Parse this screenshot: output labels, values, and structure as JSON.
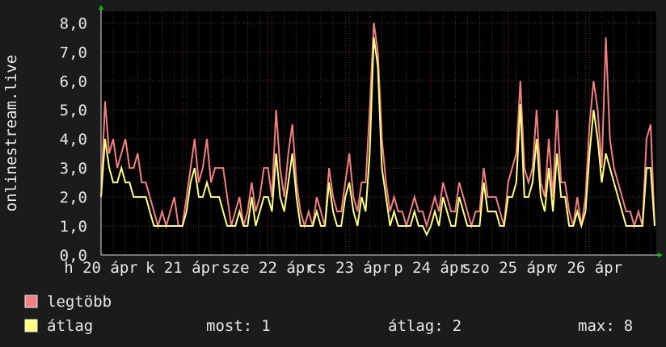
{
  "chart_data": {
    "type": "line",
    "y_label": "onlinestream.live",
    "categories": [
      "h 20 ápr",
      null,
      null,
      null,
      null,
      null,
      null,
      null,
      null,
      null,
      null,
      null,
      null,
      null,
      null,
      null,
      null,
      null,
      null,
      null,
      "k 21 ápr",
      null,
      null,
      null,
      null,
      null,
      null,
      null,
      null,
      null,
      null,
      null,
      null,
      null,
      null,
      null,
      null,
      null,
      null,
      null,
      null,
      "sze 22 ápr",
      null,
      null,
      null,
      null,
      null,
      null,
      null,
      null,
      null,
      null,
      null,
      null,
      null,
      null,
      null,
      null,
      null,
      null,
      null,
      "cs 23 ápr",
      null,
      null,
      null,
      null,
      null,
      null,
      null,
      null,
      null,
      null,
      null,
      null,
      null,
      null,
      null,
      null,
      null,
      null,
      null,
      "p 24 ápr",
      null,
      null,
      null,
      null,
      null,
      null,
      null,
      null,
      null,
      null,
      null,
      null,
      null,
      null,
      null,
      null,
      null,
      null,
      "szo 25 ápr",
      null,
      null,
      null,
      null,
      null,
      null,
      null,
      null,
      null,
      null,
      null,
      null,
      null,
      null,
      null,
      null,
      null,
      null,
      "v 26 ápr",
      null,
      null,
      null,
      null,
      null,
      null,
      null,
      null,
      null,
      null,
      null,
      null,
      null,
      null,
      null,
      null,
      null
    ],
    "series": [
      {
        "name": "legtöbb",
        "color": "#f28080",
        "values": [
          2,
          5.3,
          3.5,
          4,
          3,
          3.5,
          4,
          3,
          3,
          3.5,
          2.5,
          2.5,
          2,
          1.5,
          1,
          1.5,
          1,
          1.5,
          2,
          1,
          1,
          2,
          3,
          4,
          2.5,
          3,
          4,
          2.5,
          3,
          3,
          3,
          2,
          1,
          1.5,
          2,
          1,
          1.5,
          2.5,
          1.5,
          2,
          3,
          3,
          2,
          5,
          3,
          2,
          3.5,
          4.5,
          2.5,
          1.5,
          1,
          1.5,
          1,
          2,
          1.5,
          1,
          3,
          2,
          1.5,
          1.5,
          2.5,
          3.5,
          2,
          1.5,
          2.5,
          2.5,
          5,
          8,
          7,
          4,
          2.5,
          1.5,
          2,
          1.5,
          1.5,
          1,
          1.5,
          2,
          1.5,
          1.5,
          1,
          1.5,
          2,
          1.5,
          2.5,
          2,
          1.5,
          1.5,
          2.5,
          2,
          1.5,
          1,
          1.5,
          1.5,
          3,
          2,
          2,
          2,
          1.5,
          1,
          2.5,
          3,
          3.5,
          6,
          3,
          2.5,
          3,
          5,
          2.5,
          2,
          4,
          2,
          5,
          2.5,
          2.5,
          1.5,
          1,
          2,
          1,
          2,
          4.5,
          6,
          5,
          3,
          7.5,
          4,
          3,
          2.5,
          2,
          1.5,
          1.5,
          1,
          1.5,
          1,
          4,
          4.5,
          1
        ]
      },
      {
        "name": "átlag",
        "color": "#ffff80",
        "values": [
          2,
          4,
          3,
          2.5,
          2.5,
          3,
          2.5,
          2.5,
          2,
          2,
          2,
          2,
          1.5,
          1,
          1,
          1,
          1,
          1,
          1,
          1,
          1,
          1.5,
          2.5,
          3,
          2,
          2,
          2.5,
          2,
          2,
          2,
          1.5,
          1,
          1,
          1,
          1.5,
          1,
          1,
          2,
          1,
          1.5,
          2,
          2,
          1.5,
          3.5,
          2,
          1.5,
          2.5,
          3.5,
          2,
          1,
          1,
          1,
          1,
          1.5,
          1,
          1,
          2.5,
          1.5,
          1,
          1,
          2,
          2.5,
          1.5,
          1,
          2,
          1.5,
          3.5,
          7.5,
          6.5,
          3,
          2,
          1,
          1.5,
          1,
          1,
          1,
          1,
          1.5,
          1,
          1,
          0.7,
          1,
          1.5,
          1,
          2,
          1.5,
          1,
          1,
          2,
          1.5,
          1,
          1,
          1,
          1,
          2.5,
          1.5,
          1.5,
          1.5,
          1,
          1,
          2,
          2,
          2.5,
          5.2,
          2,
          2,
          2.5,
          4,
          2,
          1.5,
          3,
          1.5,
          3.5,
          2,
          2,
          1,
          1,
          1.5,
          1,
          1.5,
          3.5,
          5,
          4,
          2.5,
          3.5,
          3,
          2.5,
          2,
          1.5,
          1,
          1,
          1,
          1,
          1,
          3,
          3,
          1
        ]
      }
    ],
    "ylim": [
      0,
      8.4
    ],
    "yticks": [
      {
        "value": 0,
        "label": "0,0"
      },
      {
        "value": 1,
        "label": "1,0"
      },
      {
        "value": 2,
        "label": "2,0"
      },
      {
        "value": 3,
        "label": "3,0"
      },
      {
        "value": 4,
        "label": "4,0"
      },
      {
        "value": 5,
        "label": "5,0"
      },
      {
        "value": 6,
        "label": "6,0"
      },
      {
        "value": 7,
        "label": "7,0"
      },
      {
        "value": 8,
        "label": "8,0"
      }
    ],
    "grid": true,
    "stats": [
      {
        "label": "most:",
        "value": 1
      },
      {
        "label": "átlag:",
        "value": 2
      },
      {
        "label": "max:",
        "value": 8
      }
    ]
  }
}
